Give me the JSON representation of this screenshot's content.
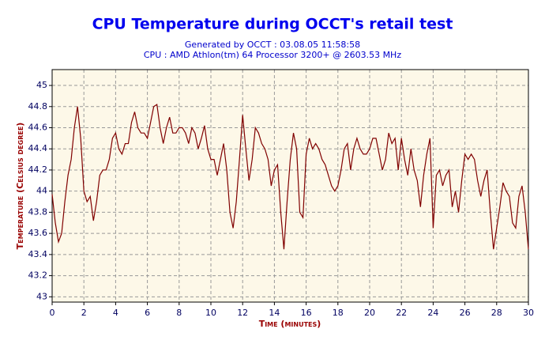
{
  "chart_data": {
    "type": "line",
    "title": "CPU Temperature during OCCT's retail test",
    "subtitle": "Generated by OCCT : 03.08.05 11:58:58",
    "subtitle2": "CPU : AMD Athlon(tm) 64 Processor 3200+ @ 2603.53 MHz",
    "xlabel": "Time (minutes)",
    "ylabel": "Temperature (Celsius degree)",
    "color": "#800000",
    "grid": true,
    "xlim": [
      0,
      30
    ],
    "ylim": [
      42.95,
      45.15
    ],
    "xticks": [
      0,
      2,
      4,
      6,
      8,
      10,
      12,
      14,
      16,
      18,
      20,
      22,
      24,
      26,
      28,
      30
    ],
    "yticks": [
      43,
      43.2,
      43.4,
      43.6,
      43.8,
      44,
      44.2,
      44.4,
      44.6,
      44.8,
      45
    ],
    "x": [
      0,
      0.2,
      0.4,
      0.6,
      0.8,
      1,
      1.2,
      1.4,
      1.6,
      1.8,
      2,
      2.2,
      2.4,
      2.6,
      2.8,
      3,
      3.2,
      3.4,
      3.6,
      3.8,
      4,
      4.2,
      4.4,
      4.6,
      4.8,
      5,
      5.2,
      5.4,
      5.6,
      5.8,
      6,
      6.2,
      6.4,
      6.6,
      6.8,
      7,
      7.2,
      7.4,
      7.6,
      7.8,
      8,
      8.2,
      8.4,
      8.6,
      8.8,
      9,
      9.2,
      9.4,
      9.6,
      9.8,
      10,
      10.2,
      10.4,
      10.6,
      10.8,
      11,
      11.2,
      11.4,
      11.6,
      11.8,
      12,
      12.2,
      12.4,
      12.6,
      12.8,
      13,
      13.2,
      13.4,
      13.6,
      13.8,
      14,
      14.2,
      14.4,
      14.6,
      14.8,
      15,
      15.2,
      15.4,
      15.6,
      15.8,
      16,
      16.2,
      16.4,
      16.6,
      16.8,
      17,
      17.2,
      17.4,
      17.6,
      17.8,
      18,
      18.2,
      18.4,
      18.6,
      18.8,
      19,
      19.2,
      19.4,
      19.6,
      19.8,
      20,
      20.2,
      20.4,
      20.6,
      20.8,
      21,
      21.2,
      21.4,
      21.6,
      21.8,
      22,
      22.2,
      22.4,
      22.6,
      22.8,
      23,
      23.2,
      23.4,
      23.6,
      23.8,
      24,
      24.2,
      24.4,
      24.6,
      24.8,
      25,
      25.2,
      25.4,
      25.6,
      25.8,
      26,
      26.2,
      26.4,
      26.6,
      26.8,
      27,
      27.2,
      27.4,
      27.6,
      27.8,
      28,
      28.2,
      28.4,
      28.6,
      28.8,
      29,
      29.2,
      29.4,
      29.6,
      29.8,
      30
    ],
    "values": [
      43.97,
      43.7,
      43.52,
      43.6,
      43.9,
      44.15,
      44.3,
      44.6,
      44.8,
      44.5,
      44.0,
      43.9,
      43.95,
      43.72,
      43.9,
      44.15,
      44.2,
      44.2,
      44.3,
      44.5,
      44.55,
      44.4,
      44.35,
      44.45,
      44.45,
      44.65,
      44.75,
      44.6,
      44.55,
      44.55,
      44.5,
      44.65,
      44.8,
      44.82,
      44.6,
      44.45,
      44.6,
      44.7,
      44.55,
      44.55,
      44.6,
      44.6,
      44.55,
      44.45,
      44.6,
      44.55,
      44.4,
      44.5,
      44.62,
      44.4,
      44.3,
      44.3,
      44.15,
      44.3,
      44.45,
      44.2,
      43.8,
      43.65,
      43.9,
      44.3,
      44.72,
      44.4,
      44.1,
      44.3,
      44.6,
      44.55,
      44.45,
      44.4,
      44.3,
      44.05,
      44.2,
      44.25,
      43.8,
      43.45,
      43.9,
      44.3,
      44.55,
      44.4,
      43.8,
      43.75,
      44.35,
      44.5,
      44.4,
      44.45,
      44.4,
      44.3,
      44.25,
      44.15,
      44.05,
      44.0,
      44.05,
      44.2,
      44.4,
      44.45,
      44.2,
      44.4,
      44.5,
      44.4,
      44.35,
      44.35,
      44.4,
      44.5,
      44.5,
      44.35,
      44.2,
      44.3,
      44.55,
      44.45,
      44.5,
      44.2,
      44.5,
      44.3,
      44.15,
      44.4,
      44.2,
      44.1,
      43.85,
      44.15,
      44.35,
      44.5,
      43.65,
      44.15,
      44.2,
      44.05,
      44.15,
      44.2,
      43.85,
      44.0,
      43.8,
      44.1,
      44.35,
      44.3,
      44.35,
      44.3,
      44.1,
      43.95,
      44.1,
      44.2,
      43.8,
      43.45,
      43.65,
      43.85,
      44.08,
      44.0,
      43.95,
      43.7,
      43.65,
      43.95,
      44.05,
      43.8,
      43.45
    ]
  }
}
